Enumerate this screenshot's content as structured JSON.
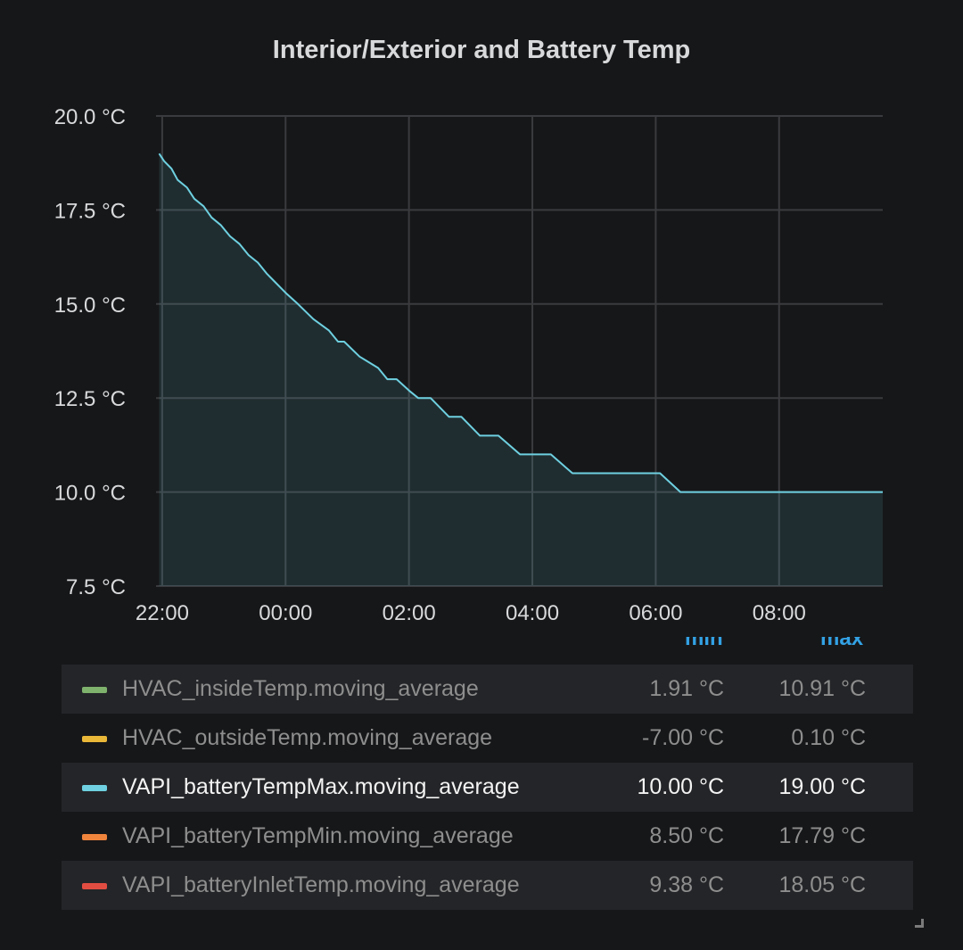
{
  "panel": {
    "title": "Interior/Exterior and Battery Temp"
  },
  "chart_data": {
    "type": "area",
    "title": "Interior/Exterior and Battery Temp",
    "y_ticks": [
      "20.0 °C",
      "17.5 °C",
      "15.0 °C",
      "12.5 °C",
      "10.0 °C",
      "7.5 °C"
    ],
    "y_tick_values": [
      20.0,
      17.5,
      15.0,
      12.5,
      10.0,
      7.5
    ],
    "ylim": [
      7.5,
      20.0
    ],
    "x_ticks": [
      "22:00",
      "00:00",
      "02:00",
      "04:00",
      "06:00",
      "08:00"
    ],
    "x_tick_hours": [
      -2,
      0,
      2,
      4,
      6,
      8
    ],
    "xlim_hours": [
      -2.1,
      9.68
    ],
    "grid": true,
    "series": [
      {
        "name": "VAPI_batteryTempMax.moving_average",
        "color": "#6ed0e0",
        "x_hours": [
          -2.05,
          -1.97,
          -1.85,
          -1.75,
          -1.6,
          -1.48,
          -1.33,
          -1.2,
          -1.05,
          -0.9,
          -0.75,
          -0.6,
          -0.45,
          -0.3,
          -0.18,
          0.0,
          0.2,
          0.45,
          0.7,
          0.85,
          0.95,
          1.2,
          1.3,
          1.5,
          1.65,
          1.8,
          2.0,
          2.15,
          2.35,
          2.65,
          2.85,
          3.15,
          3.45,
          3.8,
          4.3,
          4.65,
          6.07,
          6.4,
          9.68
        ],
        "y": [
          19.0,
          18.8,
          18.6,
          18.3,
          18.1,
          17.8,
          17.6,
          17.3,
          17.1,
          16.8,
          16.6,
          16.3,
          16.1,
          15.8,
          15.6,
          15.3,
          15.0,
          14.6,
          14.3,
          14.0,
          14.0,
          13.6,
          13.5,
          13.3,
          13.0,
          13.0,
          12.7,
          12.5,
          12.5,
          12.0,
          12.0,
          11.5,
          11.5,
          11.0,
          11.0,
          10.5,
          10.5,
          10.0,
          10.0
        ]
      }
    ]
  },
  "legend": {
    "header_min": "min",
    "header_max": "max",
    "items": [
      {
        "name": "HVAC_insideTemp.moving_average",
        "min": "1.91 °C",
        "max": "10.91 °C",
        "color": "#7eb26d"
      },
      {
        "name": "HVAC_outsideTemp.moving_average",
        "min": "-7.00 °C",
        "max": "0.10 °C",
        "color": "#eab839"
      },
      {
        "name": "VAPI_batteryTempMax.moving_average",
        "min": "10.00 °C",
        "max": "19.00 °C",
        "color": "#6ed0e0"
      },
      {
        "name": "VAPI_batteryTempMin.moving_average",
        "min": "8.50 °C",
        "max": "17.79 °C",
        "color": "#ef843c"
      },
      {
        "name": "VAPI_batteryInletTemp.moving_average",
        "min": "9.38 °C",
        "max": "18.05 °C",
        "color": "#e24d42"
      }
    ]
  }
}
